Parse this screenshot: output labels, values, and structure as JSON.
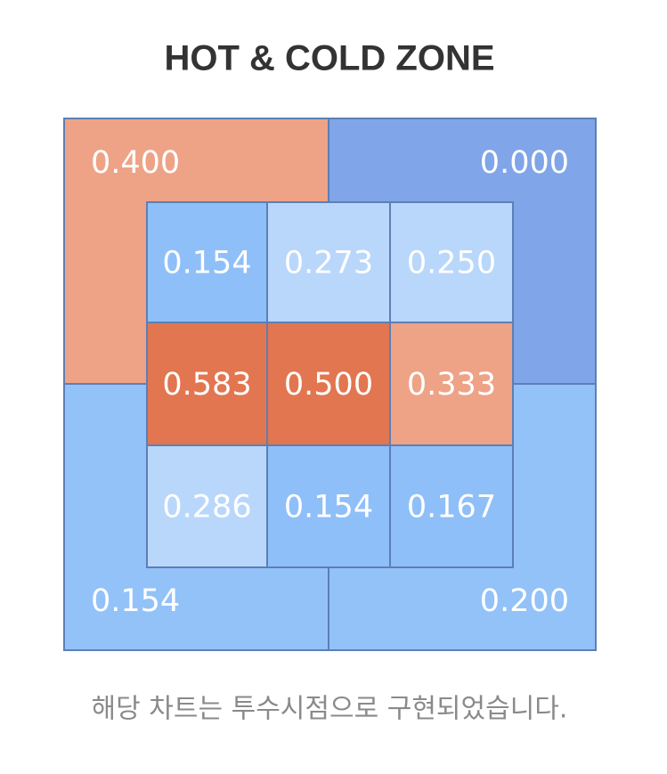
{
  "title": "HOT & COLD ZONE",
  "outer": [
    {
      "label": "0.400",
      "color": "#eea387"
    },
    {
      "label": "0.000",
      "color": "#80a5e8"
    },
    {
      "label": "0.154",
      "color": "#93c2f9"
    },
    {
      "label": "0.200",
      "color": "#93c2f9"
    }
  ],
  "inner": [
    [
      {
        "label": "0.154",
        "color": "#8fbff8"
      },
      {
        "label": "0.273",
        "color": "#b9d7fb"
      },
      {
        "label": "0.250",
        "color": "#b9d7fb"
      }
    ],
    [
      {
        "label": "0.583",
        "color": "#e27650"
      },
      {
        "label": "0.500",
        "color": "#e27650"
      },
      {
        "label": "0.333",
        "color": "#eea387"
      }
    ],
    [
      {
        "label": "0.286",
        "color": "#b9d7fb"
      },
      {
        "label": "0.154",
        "color": "#8fbff8"
      },
      {
        "label": "0.167",
        "color": "#8fbff8"
      }
    ]
  ],
  "caption": "해당 차트는 투수시점으로 구현되었습니다."
}
